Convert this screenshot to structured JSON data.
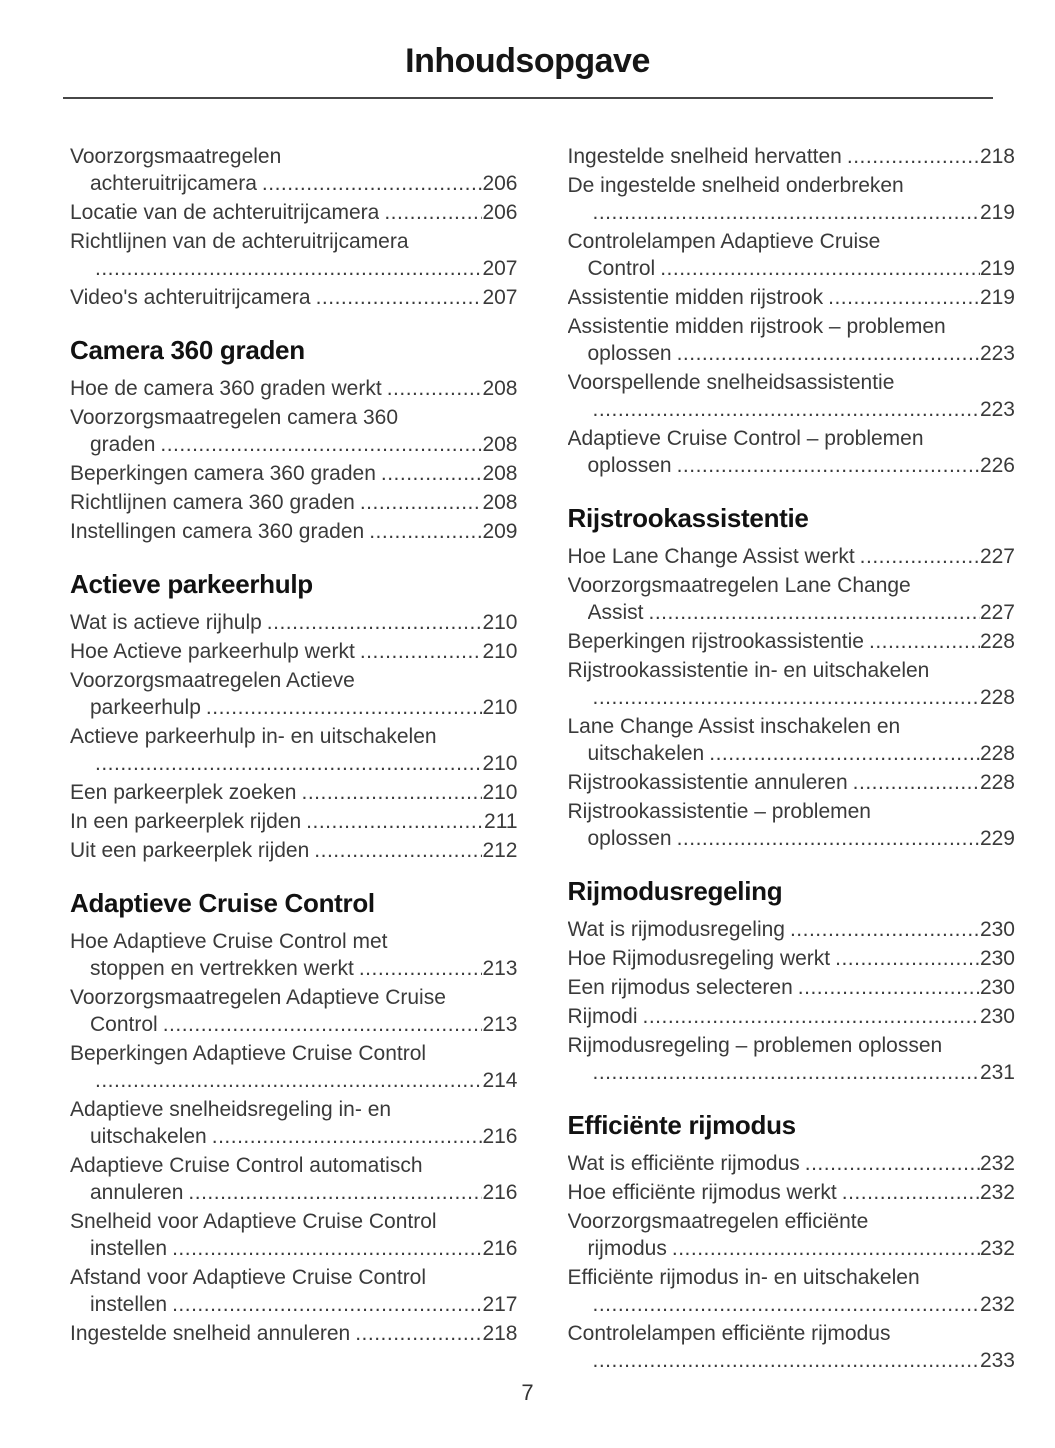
{
  "title": "Inhoudsopgave",
  "footer": {
    "page_number": "7"
  },
  "colors": {
    "background": "#ffffff",
    "body_text": "#3a3a3a",
    "heading_text": "#121212",
    "rule": "#474747"
  },
  "columns": [
    {
      "sections": [
        {
          "heading": "",
          "entries": [
            {
              "lines": [
                {
                  "text": "Voorzorgsmaatregelen"
                },
                {
                  "text": "achteruitrijcamera",
                  "indent": true,
                  "page": "206"
                }
              ]
            },
            {
              "lines": [
                {
                  "text": "Locatie van de achteruitrijcamera",
                  "page": "206"
                }
              ]
            },
            {
              "lines": [
                {
                  "text": "Richtlijnen van de achteruitrijcamera"
                },
                {
                  "text": "",
                  "indent": true,
                  "page": "207"
                }
              ]
            },
            {
              "lines": [
                {
                  "text": "Video's achteruitrijcamera",
                  "page": "207"
                }
              ]
            }
          ]
        },
        {
          "heading": "Camera 360 graden",
          "entries": [
            {
              "lines": [
                {
                  "text": "Hoe de camera 360 graden werkt",
                  "page": "208"
                }
              ]
            },
            {
              "lines": [
                {
                  "text": "Voorzorgsmaatregelen camera 360"
                },
                {
                  "text": "graden",
                  "indent": true,
                  "page": "208"
                }
              ]
            },
            {
              "lines": [
                {
                  "text": "Beperkingen camera 360 graden",
                  "page": "208"
                }
              ]
            },
            {
              "lines": [
                {
                  "text": "Richtlijnen camera 360 graden",
                  "page": "208"
                }
              ]
            },
            {
              "lines": [
                {
                  "text": "Instellingen camera 360 graden",
                  "page": "209"
                }
              ]
            }
          ]
        },
        {
          "heading": "Actieve parkeerhulp",
          "entries": [
            {
              "lines": [
                {
                  "text": "Wat is actieve rijhulp",
                  "page": "210"
                }
              ]
            },
            {
              "lines": [
                {
                  "text": "Hoe Actieve parkeerhulp werkt",
                  "page": "210"
                }
              ]
            },
            {
              "lines": [
                {
                  "text": "Voorzorgsmaatregelen Actieve"
                },
                {
                  "text": "parkeerhulp",
                  "indent": true,
                  "page": "210"
                }
              ]
            },
            {
              "lines": [
                {
                  "text": "Actieve parkeerhulp in- en uitschakelen"
                },
                {
                  "text": "",
                  "indent": true,
                  "page": "210"
                }
              ]
            },
            {
              "lines": [
                {
                  "text": "Een parkeerplek zoeken",
                  "page": "210"
                }
              ]
            },
            {
              "lines": [
                {
                  "text": "In een parkeerplek rijden",
                  "page": "211"
                }
              ]
            },
            {
              "lines": [
                {
                  "text": "Uit een parkeerplek rijden",
                  "page": "212"
                }
              ]
            }
          ]
        },
        {
          "heading": "Adaptieve Cruise Control",
          "entries": [
            {
              "lines": [
                {
                  "text": "Hoe Adaptieve Cruise Control met"
                },
                {
                  "text": "stoppen en vertrekken werkt",
                  "indent": true,
                  "page": "213"
                }
              ]
            },
            {
              "lines": [
                {
                  "text": "Voorzorgsmaatregelen Adaptieve Cruise"
                },
                {
                  "text": "Control",
                  "indent": true,
                  "page": "213"
                }
              ]
            },
            {
              "lines": [
                {
                  "text": "Beperkingen Adaptieve Cruise Control"
                },
                {
                  "text": "",
                  "indent": true,
                  "page": "214"
                }
              ]
            },
            {
              "lines": [
                {
                  "text": "Adaptieve snelheidsregeling in- en"
                },
                {
                  "text": "uitschakelen",
                  "indent": true,
                  "page": "216"
                }
              ]
            },
            {
              "lines": [
                {
                  "text": "Adaptieve Cruise Control automatisch"
                },
                {
                  "text": "annuleren",
                  "indent": true,
                  "page": "216"
                }
              ]
            },
            {
              "lines": [
                {
                  "text": "Snelheid voor Adaptieve Cruise Control"
                },
                {
                  "text": "instellen",
                  "indent": true,
                  "page": "216"
                }
              ]
            },
            {
              "lines": [
                {
                  "text": "Afstand voor Adaptieve Cruise Control"
                },
                {
                  "text": "instellen",
                  "indent": true,
                  "page": "217"
                }
              ]
            },
            {
              "lines": [
                {
                  "text": "Ingestelde snelheid annuleren",
                  "page": "218"
                }
              ]
            }
          ]
        }
      ]
    },
    {
      "sections": [
        {
          "heading": "",
          "entries": [
            {
              "lines": [
                {
                  "text": "Ingestelde snelheid hervatten",
                  "page": "218"
                }
              ]
            },
            {
              "lines": [
                {
                  "text": "De ingestelde snelheid onderbreken"
                },
                {
                  "text": "",
                  "indent": true,
                  "page": "219"
                }
              ]
            },
            {
              "lines": [
                {
                  "text": "Controlelampen Adaptieve Cruise"
                },
                {
                  "text": "Control",
                  "indent": true,
                  "page": "219"
                }
              ]
            },
            {
              "lines": [
                {
                  "text": "Assistentie midden rijstrook",
                  "page": "219"
                }
              ]
            },
            {
              "lines": [
                {
                  "text": "Assistentie midden rijstrook – problemen"
                },
                {
                  "text": "oplossen",
                  "indent": true,
                  "page": "223"
                }
              ]
            },
            {
              "lines": [
                {
                  "text": "Voorspellende snelheidsassistentie"
                },
                {
                  "text": "",
                  "indent": true,
                  "page": "223"
                }
              ]
            },
            {
              "lines": [
                {
                  "text": "Adaptieve Cruise Control – problemen"
                },
                {
                  "text": "oplossen",
                  "indent": true,
                  "page": "226"
                }
              ]
            }
          ]
        },
        {
          "heading": "Rijstrookassistentie",
          "entries": [
            {
              "lines": [
                {
                  "text": "Hoe Lane Change Assist werkt",
                  "page": "227"
                }
              ]
            },
            {
              "lines": [
                {
                  "text": "Voorzorgsmaatregelen Lane Change"
                },
                {
                  "text": "Assist",
                  "indent": true,
                  "page": "227"
                }
              ]
            },
            {
              "lines": [
                {
                  "text": "Beperkingen rijstrookassistentie",
                  "page": "228"
                }
              ]
            },
            {
              "lines": [
                {
                  "text": "Rijstrookassistentie in- en uitschakelen"
                },
                {
                  "text": "",
                  "indent": true,
                  "page": "228"
                }
              ]
            },
            {
              "lines": [
                {
                  "text": "Lane Change Assist inschakelen en"
                },
                {
                  "text": "uitschakelen",
                  "indent": true,
                  "page": "228"
                }
              ]
            },
            {
              "lines": [
                {
                  "text": "Rijstrookassistentie annuleren",
                  "page": "228"
                }
              ]
            },
            {
              "lines": [
                {
                  "text": "Rijstrookassistentie – problemen"
                },
                {
                  "text": "oplossen",
                  "indent": true,
                  "page": "229"
                }
              ]
            }
          ]
        },
        {
          "heading": "Rijmodusregeling",
          "entries": [
            {
              "lines": [
                {
                  "text": "Wat is rijmodusregeling",
                  "page": "230"
                }
              ]
            },
            {
              "lines": [
                {
                  "text": "Hoe Rijmodusregeling werkt",
                  "page": "230"
                }
              ]
            },
            {
              "lines": [
                {
                  "text": "Een rijmodus selecteren",
                  "page": "230"
                }
              ]
            },
            {
              "lines": [
                {
                  "text": "Rijmodi",
                  "page": "230"
                }
              ]
            },
            {
              "lines": [
                {
                  "text": "Rijmodusregeling – problemen oplossen"
                },
                {
                  "text": "",
                  "indent": true,
                  "page": "231"
                }
              ]
            }
          ]
        },
        {
          "heading": "Efficiënte rijmodus",
          "entries": [
            {
              "lines": [
                {
                  "text": "Wat is efficiënte rijmodus",
                  "page": "232"
                }
              ]
            },
            {
              "lines": [
                {
                  "text": "Hoe efficiënte rijmodus werkt",
                  "page": "232"
                }
              ]
            },
            {
              "lines": [
                {
                  "text": "Voorzorgsmaatregelen efficiënte"
                },
                {
                  "text": "rijmodus",
                  "indent": true,
                  "page": "232"
                }
              ]
            },
            {
              "lines": [
                {
                  "text": "Efficiënte rijmodus in- en uitschakelen"
                },
                {
                  "text": "",
                  "indent": true,
                  "page": "232"
                }
              ]
            },
            {
              "lines": [
                {
                  "text": "Controlelampen efficiënte rijmodus"
                },
                {
                  "text": "",
                  "indent": true,
                  "page": "233"
                }
              ]
            }
          ]
        }
      ]
    }
  ]
}
